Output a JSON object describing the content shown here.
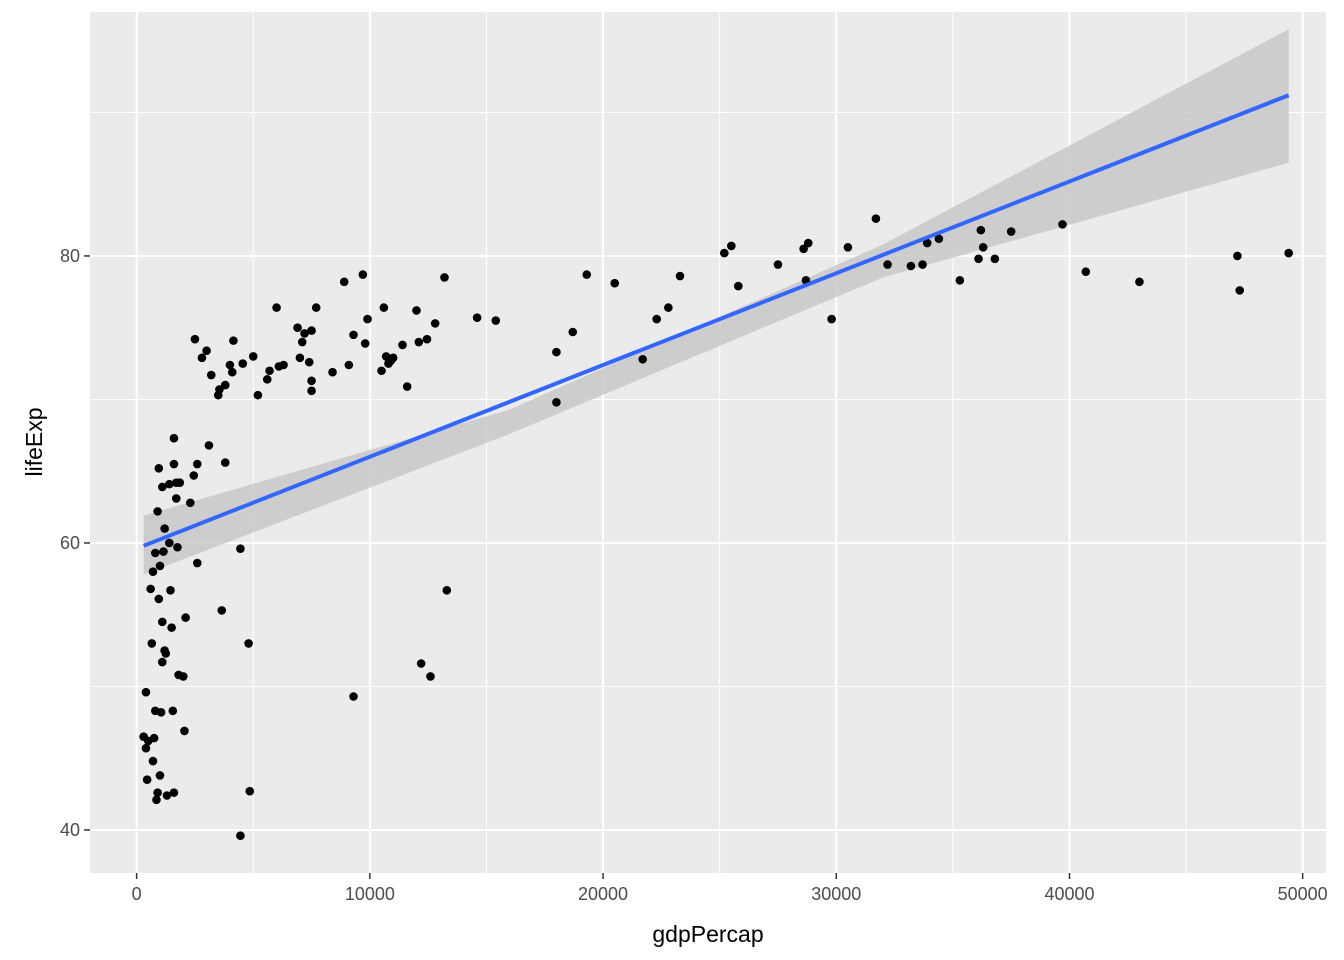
{
  "chart_data": {
    "type": "scatter",
    "xlabel": "gdpPercap",
    "ylabel": "lifeExp",
    "xlim": [
      -2000,
      51000
    ],
    "ylim": [
      37,
      97
    ],
    "xticks": [
      0,
      10000,
      20000,
      30000,
      40000,
      50000
    ],
    "xtick_labels": [
      "0",
      "10000",
      "20000",
      "30000",
      "40000",
      "50000"
    ],
    "yticks": [
      40,
      60,
      80
    ],
    "ytick_labels": [
      "40",
      "60",
      "80"
    ],
    "grid": true,
    "legend": "none",
    "colors": {
      "panel": "#EBEBEB",
      "grid": "#FFFFFF",
      "points": "#000000",
      "fit_line": "#3366FF",
      "ribbon": "#C8C8C8"
    },
    "fit": {
      "method": "lm",
      "x": [
        300,
        49400
      ],
      "y": [
        59.8,
        91.2
      ],
      "ribbon_x": [
        300,
        16000,
        32000,
        49400
      ],
      "ribbon_lower": [
        57.8,
        67.6,
        78.5,
        86.5
      ],
      "ribbon_upper": [
        61.9,
        69.3,
        80.8,
        95.8
      ]
    },
    "points": [
      [
        300,
        46.5
      ],
      [
        400,
        49.6
      ],
      [
        450,
        43.5
      ],
      [
        400,
        45.7
      ],
      [
        500,
        46.2
      ],
      [
        600,
        56.8
      ],
      [
        650,
        53.0
      ],
      [
        700,
        58.0
      ],
      [
        700,
        44.8
      ],
      [
        750,
        46.4
      ],
      [
        800,
        59.3
      ],
      [
        800,
        48.3
      ],
      [
        850,
        42.1
      ],
      [
        900,
        42.6
      ],
      [
        900,
        62.2
      ],
      [
        950,
        65.2
      ],
      [
        950,
        56.1
      ],
      [
        1000,
        43.8
      ],
      [
        1000,
        58.4
      ],
      [
        1050,
        48.2
      ],
      [
        1100,
        51.7
      ],
      [
        1100,
        54.5
      ],
      [
        1100,
        63.9
      ],
      [
        1150,
        59.4
      ],
      [
        1200,
        61.0
      ],
      [
        1200,
        52.5
      ],
      [
        1250,
        52.3
      ],
      [
        1300,
        42.4
      ],
      [
        1400,
        64.1
      ],
      [
        1400,
        60.0
      ],
      [
        1450,
        56.7
      ],
      [
        1500,
        54.1
      ],
      [
        1550,
        48.3
      ],
      [
        1600,
        42.6
      ],
      [
        1600,
        67.3
      ],
      [
        1600,
        65.5
      ],
      [
        1700,
        64.2
      ],
      [
        1700,
        63.1
      ],
      [
        1750,
        59.7
      ],
      [
        1800,
        50.8
      ],
      [
        1850,
        64.2
      ],
      [
        2000,
        50.7
      ],
      [
        2050,
        46.9
      ],
      [
        2100,
        54.8
      ],
      [
        2300,
        62.8
      ],
      [
        2450,
        64.7
      ],
      [
        2500,
        74.2
      ],
      [
        2600,
        65.5
      ],
      [
        2600,
        58.6
      ],
      [
        2800,
        72.9
      ],
      [
        3000,
        73.4
      ],
      [
        3100,
        66.8
      ],
      [
        3200,
        71.7
      ],
      [
        3500,
        70.3
      ],
      [
        3550,
        70.7
      ],
      [
        3650,
        55.3
      ],
      [
        3800,
        71.0
      ],
      [
        3800,
        65.6
      ],
      [
        4000,
        72.4
      ],
      [
        4100,
        71.9
      ],
      [
        4150,
        74.1
      ],
      [
        4450,
        39.6
      ],
      [
        4450,
        59.6
      ],
      [
        4550,
        72.5
      ],
      [
        4800,
        53.0
      ],
      [
        4850,
        42.7
      ],
      [
        5000,
        73.0
      ],
      [
        5200,
        70.3
      ],
      [
        5600,
        71.4
      ],
      [
        5700,
        72.0
      ],
      [
        6000,
        76.4
      ],
      [
        6100,
        72.3
      ],
      [
        6300,
        72.4
      ],
      [
        6900,
        75.0
      ],
      [
        7000,
        72.9
      ],
      [
        7100,
        74.0
      ],
      [
        7200,
        74.6
      ],
      [
        7400,
        72.6
      ],
      [
        7500,
        71.3
      ],
      [
        7500,
        70.6
      ],
      [
        7500,
        74.8
      ],
      [
        7700,
        76.4
      ],
      [
        8400,
        71.9
      ],
      [
        8900,
        78.2
      ],
      [
        9100,
        72.4
      ],
      [
        9300,
        49.3
      ],
      [
        9300,
        74.5
      ],
      [
        9700,
        78.7
      ],
      [
        9800,
        73.9
      ],
      [
        9900,
        75.6
      ],
      [
        10500,
        72.0
      ],
      [
        10600,
        76.4
      ],
      [
        10700,
        73.0
      ],
      [
        10800,
        72.5
      ],
      [
        10900,
        72.7
      ],
      [
        11000,
        72.9
      ],
      [
        11400,
        73.8
      ],
      [
        11600,
        70.9
      ],
      [
        12000,
        76.2
      ],
      [
        12100,
        74.0
      ],
      [
        12200,
        51.6
      ],
      [
        12450,
        74.2
      ],
      [
        12600,
        50.7
      ],
      [
        12800,
        75.3
      ],
      [
        13200,
        78.5
      ],
      [
        13300,
        56.7
      ],
      [
        14600,
        75.7
      ],
      [
        15400,
        75.5
      ],
      [
        18000,
        73.3
      ],
      [
        18000,
        69.8
      ],
      [
        18700,
        74.7
      ],
      [
        19300,
        78.7
      ],
      [
        20500,
        78.1
      ],
      [
        21700,
        72.8
      ],
      [
        22300,
        75.6
      ],
      [
        22800,
        76.4
      ],
      [
        23300,
        78.6
      ],
      [
        25200,
        80.2
      ],
      [
        25500,
        80.7
      ],
      [
        25800,
        77.9
      ],
      [
        27500,
        79.4
      ],
      [
        28600,
        80.5
      ],
      [
        28700,
        78.3
      ],
      [
        28800,
        80.9
      ],
      [
        29800,
        75.6
      ],
      [
        30500,
        80.6
      ],
      [
        31700,
        82.6
      ],
      [
        32200,
        79.4
      ],
      [
        33200,
        79.3
      ],
      [
        33700,
        79.4
      ],
      [
        33900,
        80.9
      ],
      [
        34400,
        81.2
      ],
      [
        35300,
        78.3
      ],
      [
        36100,
        79.8
      ],
      [
        36200,
        81.8
      ],
      [
        36300,
        80.6
      ],
      [
        36800,
        79.8
      ],
      [
        37500,
        81.7
      ],
      [
        39700,
        82.2
      ],
      [
        40700,
        78.9
      ],
      [
        43000,
        78.2
      ],
      [
        47200,
        80.0
      ],
      [
        47300,
        77.6
      ],
      [
        49400,
        80.2
      ]
    ]
  }
}
